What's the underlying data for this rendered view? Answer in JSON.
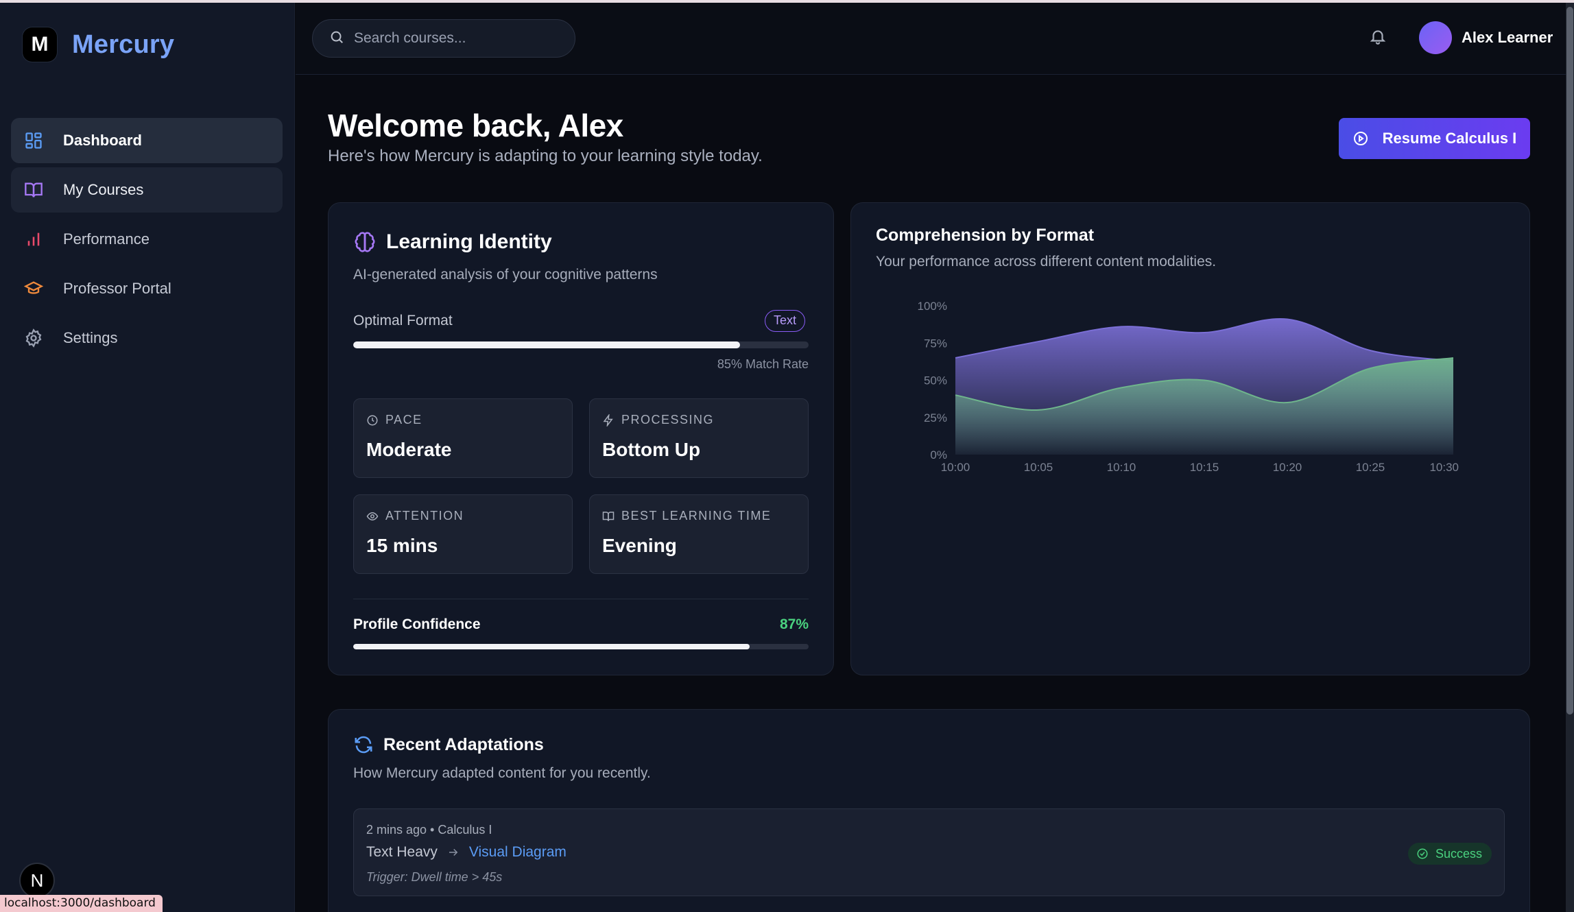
{
  "brand": {
    "mark": "M",
    "name": "Mercury"
  },
  "sidebar": {
    "items": [
      {
        "label": "Dashboard",
        "icon": "dashboard-grid-icon"
      },
      {
        "label": "My Courses",
        "icon": "book-open-icon"
      },
      {
        "label": "Performance",
        "icon": "bar-chart-icon"
      },
      {
        "label": "Professor Portal",
        "icon": "graduation-cap-icon"
      },
      {
        "label": "Settings",
        "icon": "gear-icon"
      }
    ],
    "bottom_badge": "N"
  },
  "status_url": "localhost:3000/dashboard",
  "header": {
    "search_placeholder": "Search courses...",
    "user_name": "Alex Learner"
  },
  "main": {
    "title": "Welcome back, Alex",
    "subtitle": "Here's how Mercury is adapting to your learning style today.",
    "resume_label": "Resume Calculus I"
  },
  "identity": {
    "title": "Learning Identity",
    "subtitle": "AI-generated analysis of your cognitive patterns",
    "optimal_label": "Optimal Format",
    "optimal_tag": "Text",
    "match_fraction": 0.85,
    "match_text": "85% Match Rate",
    "stats": [
      {
        "label": "PACE",
        "value": "Moderate",
        "icon": "clock-icon"
      },
      {
        "label": "PROCESSING",
        "value": "Bottom Up",
        "icon": "bolt-icon"
      },
      {
        "label": "ATTENTION",
        "value": "15 mins",
        "icon": "eye-icon"
      },
      {
        "label": "BEST LEARNING TIME",
        "value": "Evening",
        "icon": "book-icon"
      }
    ],
    "confidence_label": "Profile Confidence",
    "confidence_text": "87%",
    "confidence_fraction": 0.87
  },
  "comprehension": {
    "title": "Comprehension by Format",
    "subtitle": "Your performance across different content modalities."
  },
  "chart_data": {
    "type": "area",
    "x": [
      "10:00",
      "10:05",
      "10:10",
      "10:15",
      "10:20",
      "10:25",
      "10:30"
    ],
    "y_ticks": [
      "0%",
      "25%",
      "50%",
      "75%",
      "100%"
    ],
    "ylim": [
      0,
      100
    ],
    "series": [
      {
        "color": "#7b6fd6",
        "values": [
          65,
          76,
          86,
          82,
          91,
          70,
          63
        ]
      },
      {
        "color": "#6fb58c",
        "values": [
          40,
          30,
          45,
          50,
          35,
          58,
          65
        ]
      }
    ],
    "grid": false,
    "legend": "none"
  },
  "adaptations": {
    "title": "Recent Adaptations",
    "subtitle": "How Mercury adapted content for you recently.",
    "items": [
      {
        "meta": "2 mins ago • Calculus I",
        "from": "Text Heavy",
        "to": "Visual Diagram",
        "trigger": "Trigger: Dwell time > 45s",
        "status": "Success"
      }
    ]
  }
}
